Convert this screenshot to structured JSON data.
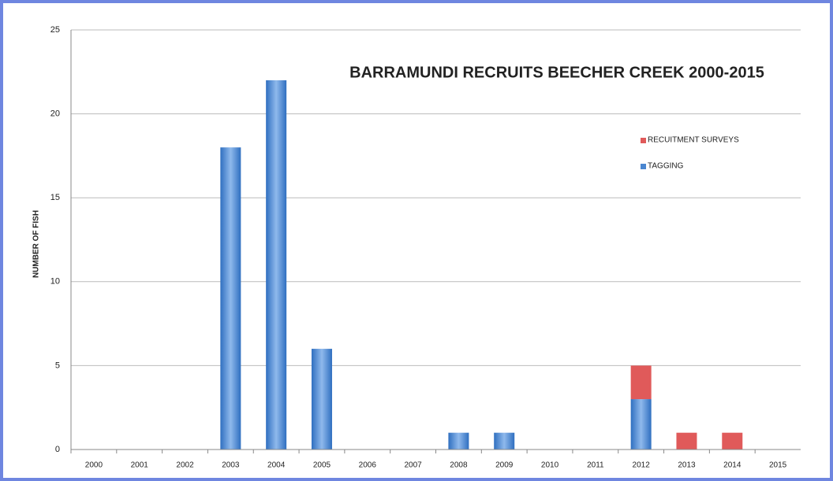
{
  "chart_data": {
    "type": "stacked_bar",
    "title": "BARRAMUNDI RECRUITS BEECHER CREEK 2000-2015",
    "y_label": "NUMBER OF FISH",
    "categories": [
      "2000",
      "2001",
      "2002",
      "2003",
      "2004",
      "2005",
      "2006",
      "2007",
      "2008",
      "2009",
      "2010",
      "2011",
      "2012",
      "2013",
      "2014",
      "2015"
    ],
    "series": [
      {
        "name": "RECUITMENT SURVEYS",
        "color": "#e05a5a",
        "values": [
          0,
          0,
          0,
          0,
          0,
          0,
          0,
          0,
          0,
          0,
          0,
          0,
          2,
          1,
          1,
          0
        ]
      },
      {
        "name": "TAGGING",
        "color": "#4a86d0",
        "values": [
          0,
          0,
          0,
          18,
          22,
          6,
          0,
          0,
          1,
          1,
          0,
          0,
          3,
          0,
          0,
          0
        ]
      }
    ],
    "ylim": [
      0,
      25
    ],
    "yticks": [
      0,
      5,
      10,
      15,
      20,
      25
    ],
    "grid": true,
    "legend": "upper right"
  }
}
